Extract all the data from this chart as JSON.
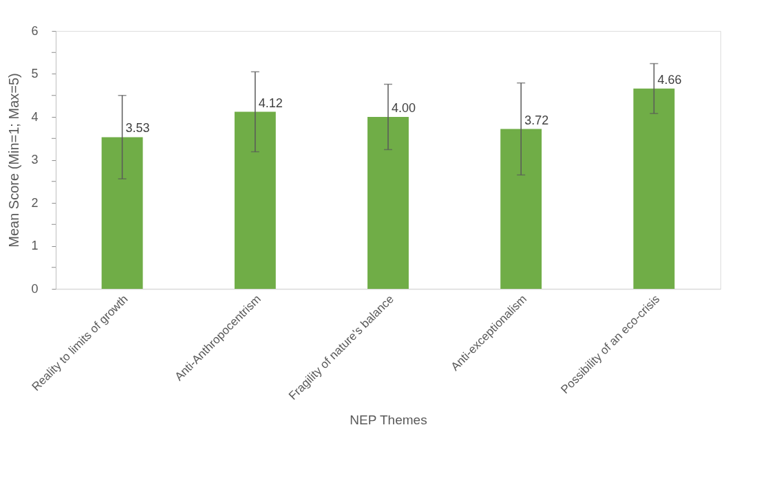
{
  "chart_data": {
    "type": "bar",
    "xlabel": "NEP Themes",
    "ylabel": "Mean Score (Min=1; Max=5)",
    "categories": [
      "Reality to limits of growth",
      "Anti-Anthropocentrism",
      "Fragility of nature's balance",
      "Anti-exceptionalism",
      "Possibility of an eco-crisis"
    ],
    "values": [
      3.53,
      4.12,
      4.0,
      3.72,
      4.66
    ],
    "value_labels": [
      "3.53",
      "4.12",
      "4.00",
      "3.72",
      "4.66"
    ],
    "errors": [
      0.97,
      0.93,
      0.76,
      1.07,
      0.58
    ],
    "color": "#70ad47",
    "ylim": [
      0,
      6
    ],
    "yticks": [
      0,
      {
        "value": 0.5,
        "label": null
      },
      1,
      {
        "value": 1.5,
        "label": null
      },
      2,
      {
        "value": 2.5,
        "label": null
      },
      3,
      {
        "value": 3.5,
        "label": null
      },
      4,
      {
        "value": 4.5,
        "label": null
      },
      5,
      {
        "value": 5.5,
        "label": null
      },
      6
    ],
    "grid": false,
    "legend": false
  }
}
